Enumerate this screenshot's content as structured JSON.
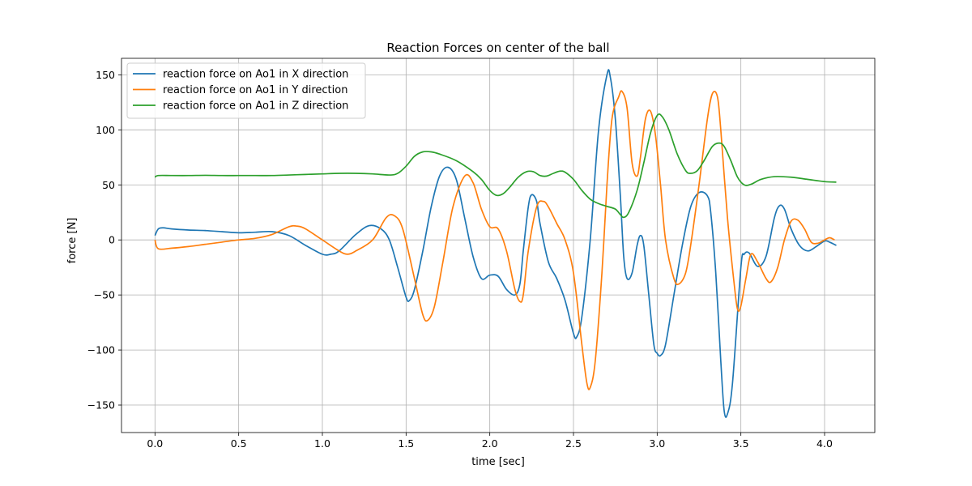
{
  "chart_data": {
    "type": "line",
    "title": "Reaction Forces on center of the ball",
    "xlabel": "time [sec]",
    "ylabel": "force [N]",
    "xlim": [
      -0.2,
      4.3
    ],
    "ylim": [
      -175,
      165
    ],
    "xticks": [
      0.0,
      0.5,
      1.0,
      1.5,
      2.0,
      2.5,
      3.0,
      3.5,
      4.0
    ],
    "xtick_labels": [
      "0.0",
      "0.5",
      "1.0",
      "1.5",
      "2.0",
      "2.5",
      "3.0",
      "3.5",
      "4.0"
    ],
    "yticks": [
      -150,
      -100,
      -50,
      0,
      50,
      100,
      150
    ],
    "ytick_labels": [
      "−150",
      "−100",
      "−50",
      "0",
      "50",
      "100",
      "150"
    ],
    "grid": true,
    "legend_position": "top-left",
    "series": [
      {
        "name": "reaction force on Ao1 in X direction",
        "color": "#1f77b4",
        "points": [
          [
            0.0,
            4
          ],
          [
            0.02,
            10
          ],
          [
            0.05,
            11
          ],
          [
            0.1,
            10
          ],
          [
            0.2,
            9
          ],
          [
            0.3,
            8.5
          ],
          [
            0.4,
            7.5
          ],
          [
            0.5,
            6.5
          ],
          [
            0.6,
            7
          ],
          [
            0.7,
            7.5
          ],
          [
            0.8,
            4
          ],
          [
            0.9,
            -5
          ],
          [
            1.0,
            -13
          ],
          [
            1.05,
            -13
          ],
          [
            1.1,
            -10
          ],
          [
            1.2,
            5
          ],
          [
            1.28,
            13
          ],
          [
            1.35,
            10
          ],
          [
            1.4,
            0
          ],
          [
            1.45,
            -25
          ],
          [
            1.5,
            -52
          ],
          [
            1.52,
            -55
          ],
          [
            1.55,
            -45
          ],
          [
            1.6,
            -10
          ],
          [
            1.65,
            30
          ],
          [
            1.7,
            58
          ],
          [
            1.75,
            66
          ],
          [
            1.8,
            55
          ],
          [
            1.85,
            20
          ],
          [
            1.9,
            -15
          ],
          [
            1.95,
            -35
          ],
          [
            2.0,
            -32
          ],
          [
            2.05,
            -33
          ],
          [
            2.1,
            -45
          ],
          [
            2.15,
            -50
          ],
          [
            2.18,
            -40
          ],
          [
            2.2,
            -10
          ],
          [
            2.23,
            30
          ],
          [
            2.25,
            41
          ],
          [
            2.28,
            35
          ],
          [
            2.3,
            15
          ],
          [
            2.35,
            -20
          ],
          [
            2.4,
            -35
          ],
          [
            2.45,
            -55
          ],
          [
            2.5,
            -85
          ],
          [
            2.52,
            -88
          ],
          [
            2.55,
            -70
          ],
          [
            2.6,
            0
          ],
          [
            2.65,
            100
          ],
          [
            2.7,
            150
          ],
          [
            2.72,
            148
          ],
          [
            2.75,
            110
          ],
          [
            2.78,
            40
          ],
          [
            2.8,
            -15
          ],
          [
            2.82,
            -35
          ],
          [
            2.85,
            -30
          ],
          [
            2.88,
            -5
          ],
          [
            2.9,
            4
          ],
          [
            2.92,
            -5
          ],
          [
            2.95,
            -50
          ],
          [
            2.98,
            -95
          ],
          [
            3.0,
            -103
          ],
          [
            3.02,
            -105
          ],
          [
            3.05,
            -95
          ],
          [
            3.1,
            -50
          ],
          [
            3.15,
            -5
          ],
          [
            3.2,
            30
          ],
          [
            3.25,
            43
          ],
          [
            3.3,
            40
          ],
          [
            3.32,
            25
          ],
          [
            3.35,
            -30
          ],
          [
            3.38,
            -110
          ],
          [
            3.4,
            -155
          ],
          [
            3.42,
            -158
          ],
          [
            3.45,
            -130
          ],
          [
            3.5,
            -25
          ],
          [
            3.52,
            -13
          ],
          [
            3.55,
            -12
          ],
          [
            3.6,
            -24
          ],
          [
            3.65,
            -15
          ],
          [
            3.7,
            20
          ],
          [
            3.73,
            31
          ],
          [
            3.76,
            28
          ],
          [
            3.8,
            10
          ],
          [
            3.85,
            -5
          ],
          [
            3.9,
            -10
          ],
          [
            3.95,
            -6
          ],
          [
            4.0,
            -1
          ],
          [
            4.03,
            -2
          ],
          [
            4.07,
            -5
          ]
        ]
      },
      {
        "name": "reaction force on Ao1 in Y direction",
        "color": "#ff7f0e",
        "points": [
          [
            0.0,
            0
          ],
          [
            0.02,
            -8
          ],
          [
            0.1,
            -7.5
          ],
          [
            0.2,
            -6
          ],
          [
            0.3,
            -4
          ],
          [
            0.4,
            -2
          ],
          [
            0.5,
            0
          ],
          [
            0.6,
            1.5
          ],
          [
            0.7,
            5
          ],
          [
            0.8,
            12
          ],
          [
            0.85,
            12.5
          ],
          [
            0.9,
            10
          ],
          [
            1.0,
            0
          ],
          [
            1.1,
            -10
          ],
          [
            1.15,
            -13
          ],
          [
            1.2,
            -10
          ],
          [
            1.3,
            0
          ],
          [
            1.38,
            20
          ],
          [
            1.43,
            22
          ],
          [
            1.48,
            10
          ],
          [
            1.55,
            -35
          ],
          [
            1.6,
            -68
          ],
          [
            1.63,
            -73
          ],
          [
            1.67,
            -60
          ],
          [
            1.72,
            -20
          ],
          [
            1.78,
            30
          ],
          [
            1.85,
            58
          ],
          [
            1.9,
            52
          ],
          [
            1.95,
            28
          ],
          [
            2.0,
            12
          ],
          [
            2.05,
            10
          ],
          [
            2.1,
            -10
          ],
          [
            2.15,
            -45
          ],
          [
            2.18,
            -56
          ],
          [
            2.2,
            -50
          ],
          [
            2.23,
            -10
          ],
          [
            2.28,
            30
          ],
          [
            2.32,
            35
          ],
          [
            2.35,
            30
          ],
          [
            2.4,
            15
          ],
          [
            2.45,
            0
          ],
          [
            2.5,
            -30
          ],
          [
            2.55,
            -95
          ],
          [
            2.58,
            -130
          ],
          [
            2.6,
            -134
          ],
          [
            2.63,
            -110
          ],
          [
            2.67,
            -30
          ],
          [
            2.7,
            50
          ],
          [
            2.73,
            110
          ],
          [
            2.77,
            130
          ],
          [
            2.79,
            135
          ],
          [
            2.82,
            120
          ],
          [
            2.85,
            70
          ],
          [
            2.88,
            58
          ],
          [
            2.9,
            75
          ],
          [
            2.93,
            110
          ],
          [
            2.96,
            117
          ],
          [
            2.99,
            95
          ],
          [
            3.02,
            50
          ],
          [
            3.05,
            0
          ],
          [
            3.1,
            -35
          ],
          [
            3.13,
            -40
          ],
          [
            3.17,
            -30
          ],
          [
            3.2,
            -5
          ],
          [
            3.25,
            50
          ],
          [
            3.3,
            110
          ],
          [
            3.33,
            133
          ],
          [
            3.36,
            130
          ],
          [
            3.38,
            100
          ],
          [
            3.42,
            20
          ],
          [
            3.46,
            -40
          ],
          [
            3.48,
            -63
          ],
          [
            3.5,
            -60
          ],
          [
            3.53,
            -35
          ],
          [
            3.56,
            -13
          ],
          [
            3.6,
            -20
          ],
          [
            3.65,
            -35
          ],
          [
            3.68,
            -38
          ],
          [
            3.72,
            -25
          ],
          [
            3.76,
            0
          ],
          [
            3.8,
            17
          ],
          [
            3.84,
            18
          ],
          [
            3.88,
            10
          ],
          [
            3.92,
            -2
          ],
          [
            3.96,
            -3
          ],
          [
            4.0,
            0
          ],
          [
            4.03,
            2
          ],
          [
            4.06,
            0
          ]
        ]
      },
      {
        "name": "reaction force on Ao1 in Z direction",
        "color": "#2ca02c",
        "points": [
          [
            0.0,
            57
          ],
          [
            0.02,
            58.5
          ],
          [
            0.1,
            58.5
          ],
          [
            0.2,
            58.5
          ],
          [
            0.3,
            58.7
          ],
          [
            0.4,
            58.5
          ],
          [
            0.5,
            58.5
          ],
          [
            0.6,
            58.5
          ],
          [
            0.7,
            58.5
          ],
          [
            0.8,
            59
          ],
          [
            0.9,
            59.5
          ],
          [
            1.0,
            60
          ],
          [
            1.1,
            60.5
          ],
          [
            1.2,
            60.5
          ],
          [
            1.3,
            60
          ],
          [
            1.4,
            59
          ],
          [
            1.45,
            60.5
          ],
          [
            1.5,
            67
          ],
          [
            1.55,
            76
          ],
          [
            1.6,
            80
          ],
          [
            1.65,
            80
          ],
          [
            1.7,
            78
          ],
          [
            1.8,
            72
          ],
          [
            1.9,
            62
          ],
          [
            1.95,
            55
          ],
          [
            2.0,
            45
          ],
          [
            2.04,
            40.5
          ],
          [
            2.08,
            42
          ],
          [
            2.12,
            48
          ],
          [
            2.17,
            57
          ],
          [
            2.22,
            62
          ],
          [
            2.26,
            62
          ],
          [
            2.3,
            58.5
          ],
          [
            2.34,
            58
          ],
          [
            2.38,
            60.5
          ],
          [
            2.42,
            62.5
          ],
          [
            2.45,
            61.5
          ],
          [
            2.5,
            55
          ],
          [
            2.55,
            45
          ],
          [
            2.6,
            37
          ],
          [
            2.65,
            33
          ],
          [
            2.7,
            30.5
          ],
          [
            2.75,
            28
          ],
          [
            2.78,
            23
          ],
          [
            2.8,
            20.5
          ],
          [
            2.83,
            25
          ],
          [
            2.88,
            45
          ],
          [
            2.92,
            70
          ],
          [
            2.96,
            97
          ],
          [
            3.0,
            113
          ],
          [
            3.03,
            112
          ],
          [
            3.07,
            100
          ],
          [
            3.12,
            78
          ],
          [
            3.17,
            63
          ],
          [
            3.2,
            60.5
          ],
          [
            3.24,
            63
          ],
          [
            3.28,
            72
          ],
          [
            3.33,
            85
          ],
          [
            3.37,
            88
          ],
          [
            3.4,
            85
          ],
          [
            3.44,
            72
          ],
          [
            3.48,
            57
          ],
          [
            3.52,
            50
          ],
          [
            3.56,
            50.5
          ],
          [
            3.62,
            55
          ],
          [
            3.7,
            57.5
          ],
          [
            3.8,
            57
          ],
          [
            3.9,
            55
          ],
          [
            4.0,
            53
          ],
          [
            4.07,
            52.5
          ]
        ]
      }
    ]
  }
}
